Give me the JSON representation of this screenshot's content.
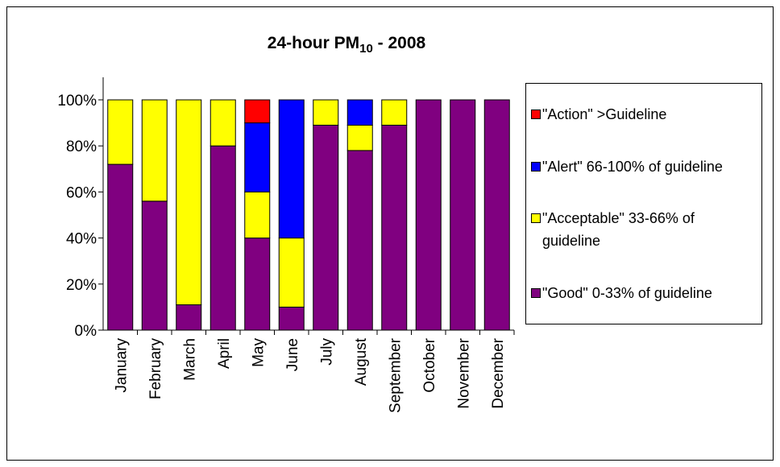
{
  "chart_data": {
    "type": "stacked_bar",
    "title": {
      "text": "24-hour PM",
      "subscript": "10",
      "rest": " - 2008"
    },
    "categories": [
      "January",
      "February",
      "March",
      "April",
      "May",
      "June",
      "July",
      "August",
      "September",
      "October",
      "November",
      "December"
    ],
    "series": [
      {
        "name": "\"Good\" 0-33% of guideline",
        "color": "#800080",
        "values": [
          72,
          56,
          11,
          80,
          40,
          10,
          89,
          78,
          89,
          100,
          100,
          100
        ]
      },
      {
        "name": "\"Acceptable\" 33-66% of guideline",
        "color": "#ffff00",
        "values": [
          28,
          44,
          89,
          20,
          20,
          30,
          11,
          11,
          11,
          0,
          0,
          0
        ]
      },
      {
        "name": "\"Alert\" 66-100% of guideline",
        "color": "#0000ff",
        "values": [
          0,
          0,
          0,
          0,
          30,
          60,
          0,
          11,
          0,
          0,
          0,
          0
        ]
      },
      {
        "name": "\"Action\" >Guideline",
        "color": "#ff0000",
        "values": [
          0,
          0,
          0,
          0,
          10,
          0,
          0,
          0,
          0,
          0,
          0,
          0
        ]
      }
    ],
    "ylim": [
      0,
      100
    ],
    "yticks": [
      {
        "value": 0,
        "label": "0%"
      },
      {
        "value": 20,
        "label": "20%"
      },
      {
        "value": 40,
        "label": "40%"
      },
      {
        "value": 60,
        "label": "60%"
      },
      {
        "value": 80,
        "label": "80%"
      },
      {
        "value": 100,
        "label": "100%"
      }
    ],
    "legend": "right"
  }
}
